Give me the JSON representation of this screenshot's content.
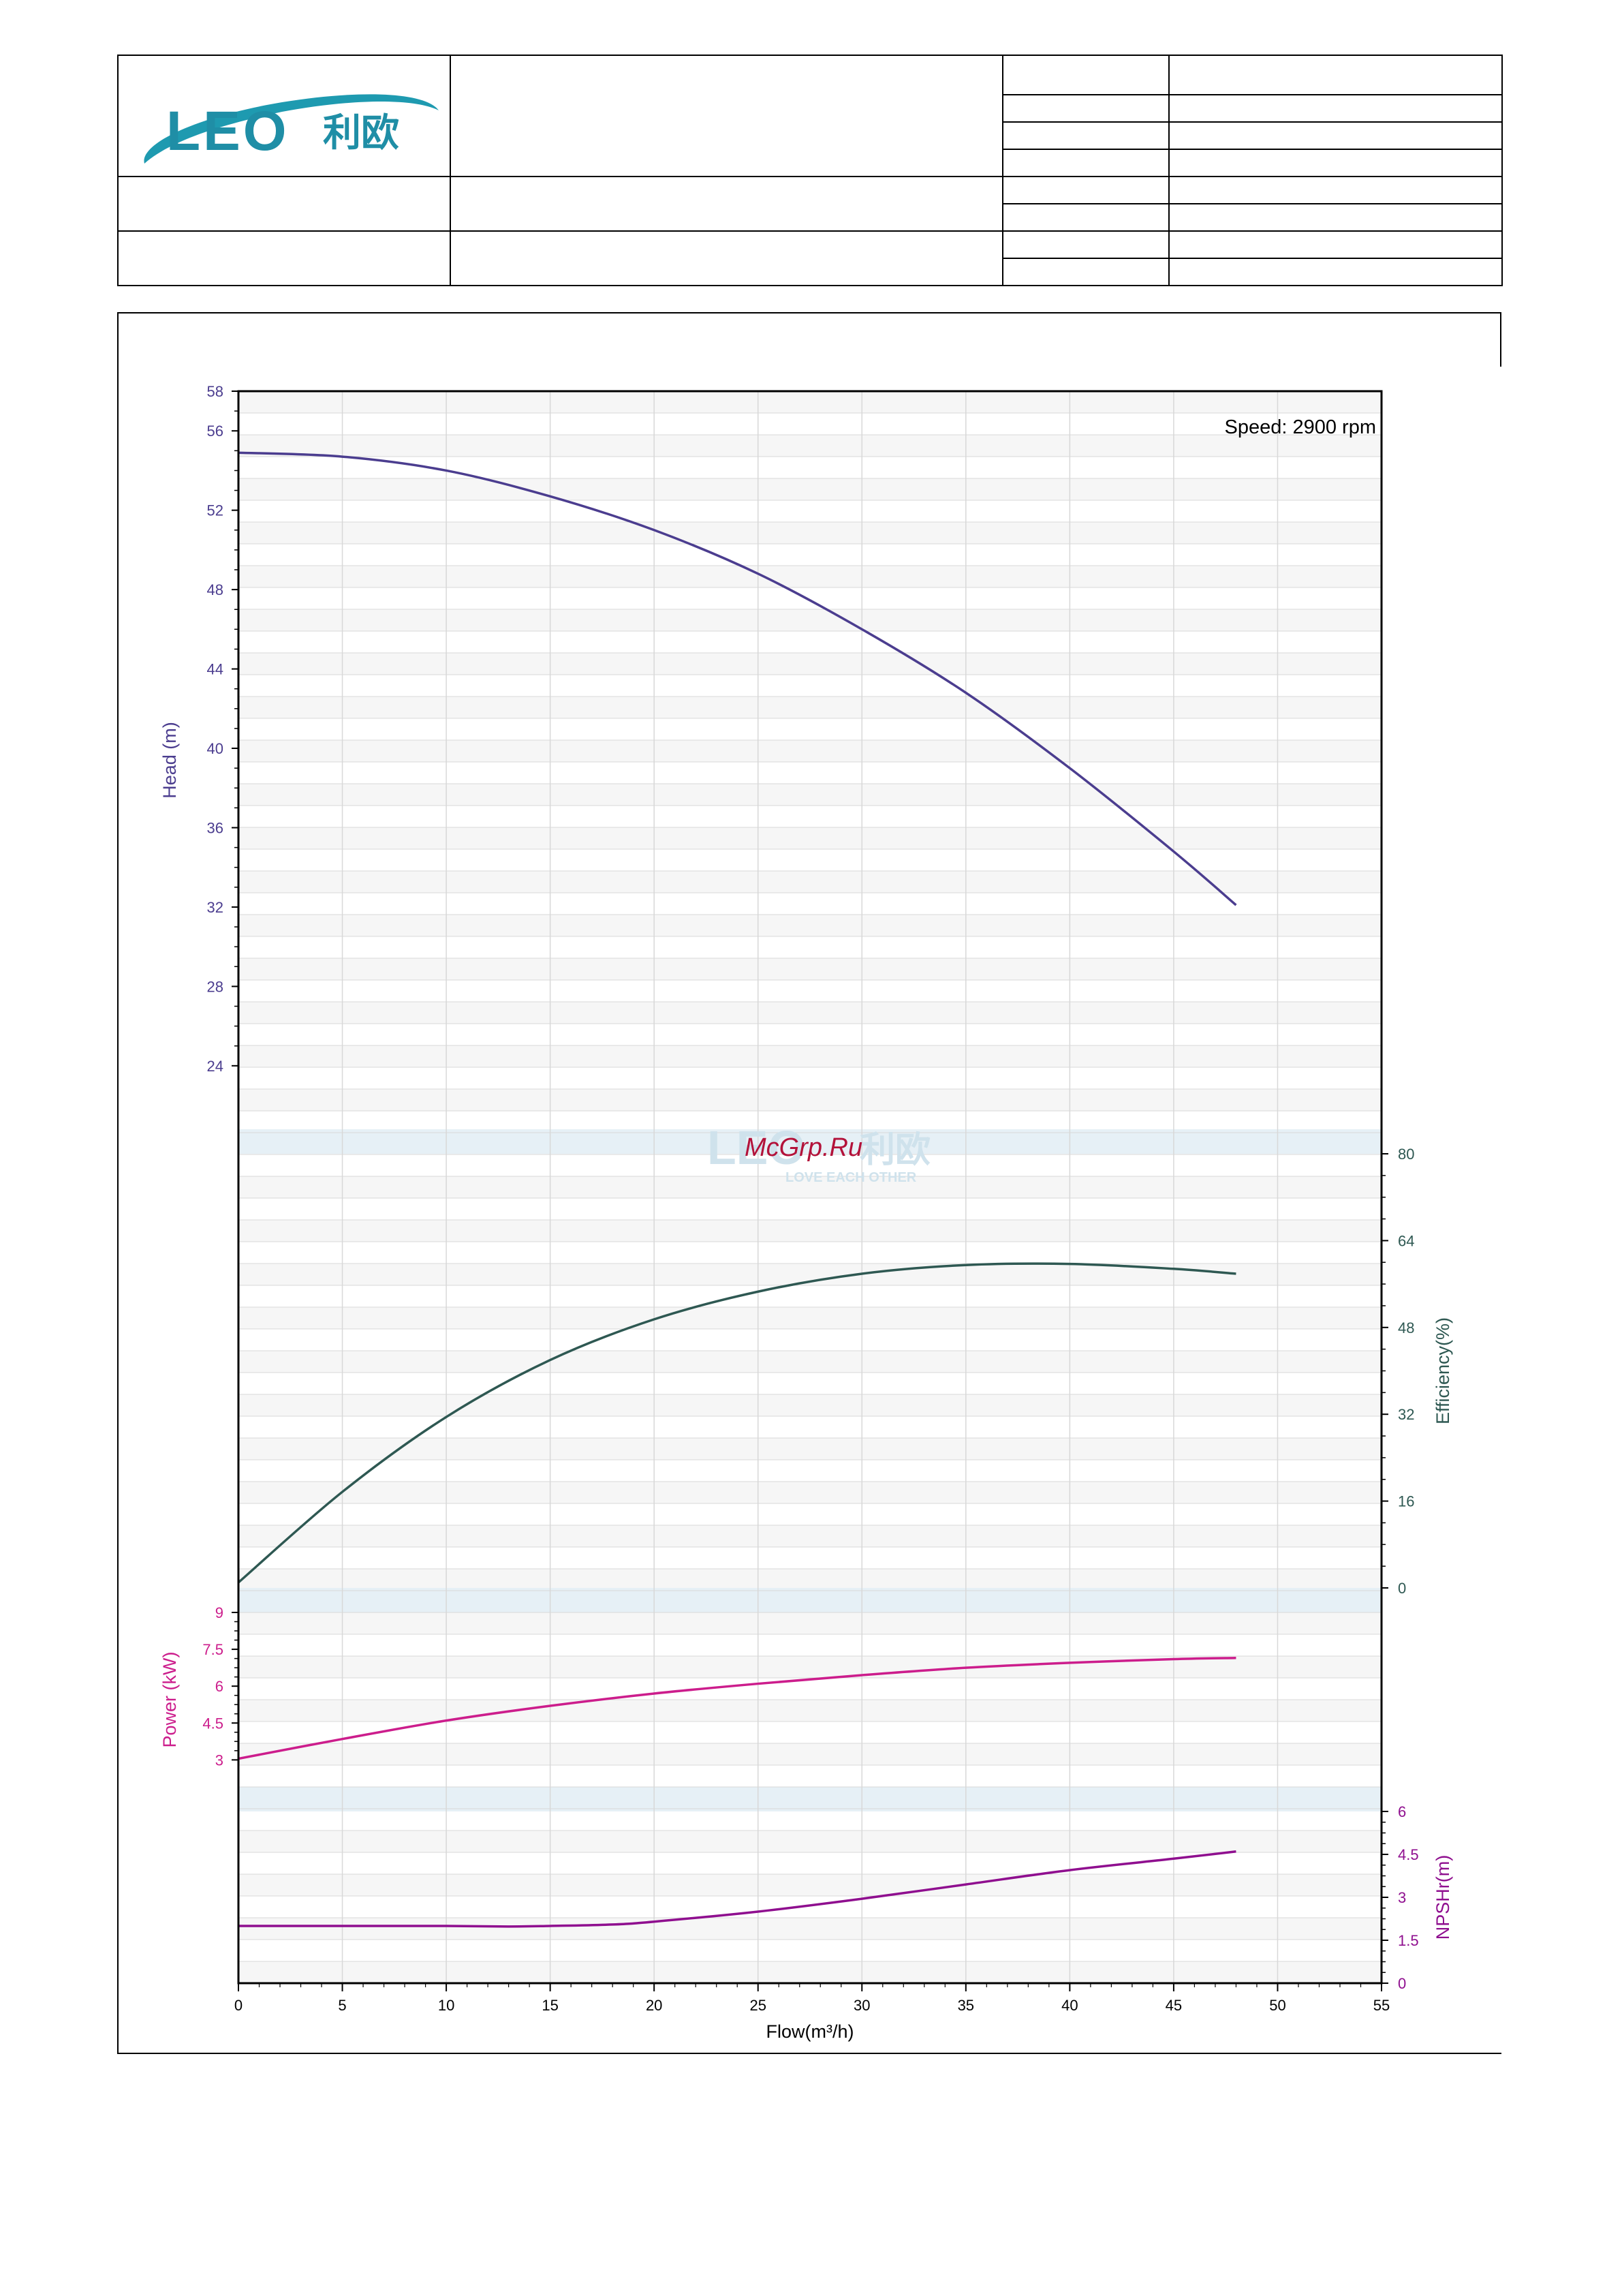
{
  "logo": {
    "latin": "LEO",
    "chinese": "利欧"
  },
  "watermark": {
    "brand": "McGrp.Ru",
    "tagline": "LOVE EACH OTHER"
  },
  "colors": {
    "head": "#4b3d8f",
    "efficiency": "#2e5852",
    "power": "#cc1d8c",
    "npsh": "#8f0f8f",
    "band": "#e6f0f6",
    "grid": "#d8d8d8",
    "frame": "#000000"
  },
  "chart_data": {
    "type": "line",
    "annotation": "Speed: 2900 rpm",
    "x": {
      "label": "Flow(m³/h)",
      "range": [
        0,
        55
      ],
      "ticks": [
        0,
        5,
        10,
        15,
        20,
        25,
        30,
        35,
        40,
        45,
        50,
        55
      ]
    },
    "series": [
      {
        "name": "Head (m)",
        "axis": "left",
        "axis_label": "Head (m)",
        "range": [
          20.8,
          58
        ],
        "ticks": [
          24,
          28,
          32,
          36,
          40,
          44,
          48,
          52,
          56,
          58
        ],
        "points": [
          [
            0,
            54.9
          ],
          [
            5,
            54.7
          ],
          [
            10,
            54.0
          ],
          [
            15,
            52.7
          ],
          [
            20,
            51.0
          ],
          [
            25,
            48.8
          ],
          [
            30,
            46.0
          ],
          [
            35,
            42.8
          ],
          [
            40,
            39.0
          ],
          [
            45,
            34.8
          ],
          [
            48,
            32.1
          ]
        ]
      },
      {
        "name": "Efficiency(%)",
        "axis": "right",
        "axis_label": "Efficiency(%)",
        "range": [
          0,
          80
        ],
        "ticks": [
          0,
          16,
          32,
          48,
          64,
          80
        ],
        "points": [
          [
            0,
            1
          ],
          [
            5,
            17.7
          ],
          [
            10,
            31.5
          ],
          [
            15,
            42
          ],
          [
            20,
            49.5
          ],
          [
            25,
            54.6
          ],
          [
            30,
            57.9
          ],
          [
            35,
            59.5
          ],
          [
            40,
            59.7
          ],
          [
            45,
            58.8
          ],
          [
            48,
            57.9
          ]
        ]
      },
      {
        "name": "Power (kW)",
        "axis": "left",
        "axis_label": "Power (kW)",
        "range": [
          1.9,
          9
        ],
        "ticks": [
          3,
          4.5,
          6,
          7.5,
          9
        ],
        "points": [
          [
            0,
            3.05
          ],
          [
            5,
            3.85
          ],
          [
            10,
            4.6
          ],
          [
            15,
            5.2
          ],
          [
            20,
            5.7
          ],
          [
            25,
            6.1
          ],
          [
            30,
            6.45
          ],
          [
            35,
            6.75
          ],
          [
            40,
            6.95
          ],
          [
            45,
            7.1
          ],
          [
            48,
            7.15
          ]
        ]
      },
      {
        "name": "NPSHr(m)",
        "axis": "right",
        "axis_label": "NPSHr(m)",
        "range": [
          0,
          6
        ],
        "ticks": [
          0,
          1.5,
          3,
          4.5,
          6
        ],
        "points": [
          [
            0,
            2.0
          ],
          [
            5,
            2.0
          ],
          [
            10,
            2.0
          ],
          [
            13,
            1.98
          ],
          [
            15,
            2.0
          ],
          [
            18,
            2.05
          ],
          [
            20,
            2.15
          ],
          [
            25,
            2.5
          ],
          [
            30,
            2.95
          ],
          [
            35,
            3.45
          ],
          [
            40,
            3.95
          ],
          [
            45,
            4.35
          ],
          [
            48,
            4.6
          ]
        ]
      }
    ],
    "grid": true
  }
}
